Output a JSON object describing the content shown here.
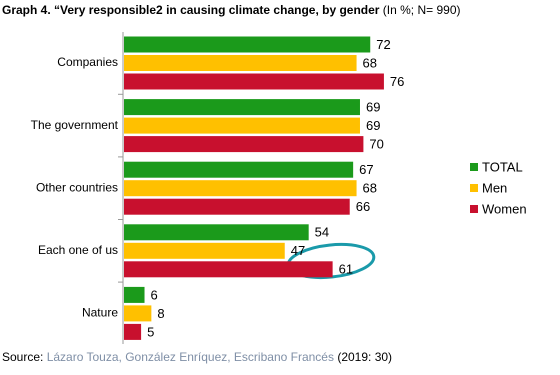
{
  "chart_data": {
    "type": "hbar",
    "title": "Graph 4. “Very responsible2 in causing climate change, by gender",
    "title_note": " (In %; N= 990)",
    "categories": [
      "Companies",
      "The government",
      "Other countries",
      "Each one of us",
      "Nature"
    ],
    "series": [
      {
        "name": "TOTAL",
        "color": "#1b9a1b",
        "values": [
          72,
          69,
          67,
          54,
          6
        ]
      },
      {
        "name": "Men",
        "color": "#ffc000",
        "values": [
          68,
          69,
          68,
          47,
          8
        ]
      },
      {
        "name": "Women",
        "color": "#c8102e",
        "values": [
          76,
          70,
          66,
          61,
          5
        ]
      }
    ],
    "legend": "right",
    "source_label": "Source:",
    "source_authors": "Lázaro Touza, González Enríquez, Escribano Francés",
    "source_year": "(2019: 30)"
  }
}
